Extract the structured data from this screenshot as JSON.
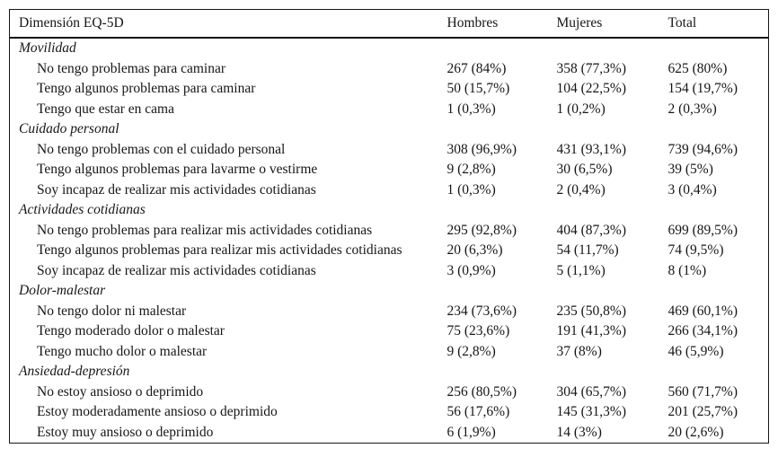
{
  "table": {
    "columns": {
      "dimension": "Dimensión EQ-5D",
      "hombres": "Hombres",
      "mujeres": "Mujeres",
      "total": "Total"
    },
    "sections": [
      {
        "title": "Movilidad",
        "rows": [
          {
            "label": "No tengo problemas para caminar",
            "hombres": "267 (84%)",
            "mujeres": "358 (77,3%)",
            "total": "625 (80%)"
          },
          {
            "label": "Tengo algunos problemas para caminar",
            "hombres": "50 (15,7%)",
            "mujeres": "104 (22,5%)",
            "total": "154 (19,7%)"
          },
          {
            "label": "Tengo que estar en cama",
            "hombres": "1 (0,3%)",
            "mujeres": "1 (0,2%)",
            "total": "2 (0,3%)"
          }
        ]
      },
      {
        "title": "Cuidado personal",
        "rows": [
          {
            "label": "No tengo problemas con el cuidado personal",
            "hombres": "308 (96,9%)",
            "mujeres": "431 (93,1%)",
            "total": "739 (94,6%)"
          },
          {
            "label": "Tengo algunos problemas para lavarme o vestirme",
            "hombres": "9 (2,8%)",
            "mujeres": "30 (6,5%)",
            "total": "39 (5%)"
          },
          {
            "label": "Soy incapaz de realizar mis actividades cotidianas",
            "hombres": "1 (0,3%)",
            "mujeres": "2 (0,4%)",
            "total": "3 (0,4%)"
          }
        ]
      },
      {
        "title": "Actividades cotidianas",
        "rows": [
          {
            "label": "No tengo problemas para realizar mis actividades cotidianas",
            "hombres": "295 (92,8%)",
            "mujeres": "404 (87,3%)",
            "total": "699 (89,5%)"
          },
          {
            "label": "Tengo algunos problemas para realizar mis actividades cotidianas",
            "hombres": "20 (6,3%)",
            "mujeres": "54 (11,7%)",
            "total": "74 (9,5%)"
          },
          {
            "label": "Soy incapaz de realizar mis actividades cotidianas",
            "hombres": "3 (0,9%)",
            "mujeres": "5 (1,1%)",
            "total": "8 (1%)"
          }
        ]
      },
      {
        "title": "Dolor-malestar",
        "rows": [
          {
            "label": "No tengo dolor ni malestar",
            "hombres": "234 (73,6%)",
            "mujeres": "235 (50,8%)",
            "total": "469 (60,1%)"
          },
          {
            "label": "Tengo moderado dolor o malestar",
            "hombres": "75 (23,6%)",
            "mujeres": "191 (41,3%)",
            "total": "266 (34,1%)"
          },
          {
            "label": "Tengo mucho dolor o malestar",
            "hombres": "9 (2,8%)",
            "mujeres": "37 (8%)",
            "total": "46 (5,9%)"
          }
        ]
      },
      {
        "title": "Ansiedad-depresión",
        "rows": [
          {
            "label": "No estoy ansioso o deprimido",
            "hombres": "256 (80,5%)",
            "mujeres": "304 (65,7%)",
            "total": "560 (71,7%)"
          },
          {
            "label": "Estoy moderadamente ansioso o deprimido",
            "hombres": "56 (17,6%)",
            "mujeres": "145 (31,3%)",
            "total": "201 (25,7%)"
          },
          {
            "label": "Estoy muy ansioso o deprimido",
            "hombres": "6 (1,9%)",
            "mujeres": "14 (3%)",
            "total": "20 (2,6%)"
          }
        ]
      }
    ]
  }
}
